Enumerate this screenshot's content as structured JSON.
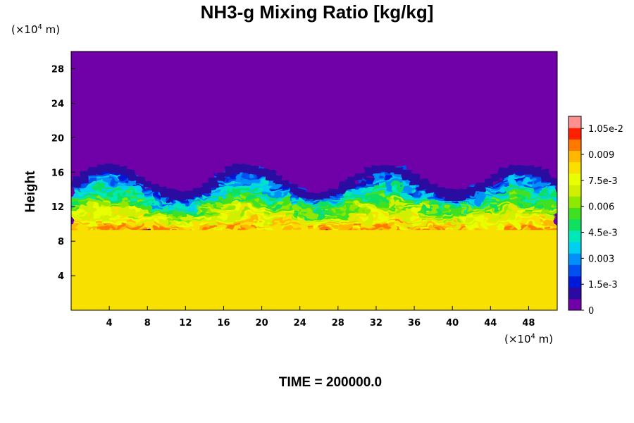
{
  "chart_data": {
    "type": "heatmap",
    "title": "NH3-g Mixing Ratio [kg/kg]",
    "ylabel": "Height",
    "x_unit": "(×10⁴ m)",
    "y_unit": "(×10⁴ m)",
    "footer": "TIME = 200000.0",
    "xlim": [
      0,
      51
    ],
    "ylim": [
      0,
      30
    ],
    "x_ticks": [
      4,
      8,
      12,
      16,
      20,
      24,
      28,
      32,
      36,
      40,
      44,
      48
    ],
    "y_ticks": [
      4,
      8,
      12,
      16,
      20,
      24,
      28
    ],
    "colorbar": {
      "range": [
        0,
        0.0112
      ],
      "tick_values": [
        0,
        0.0015,
        0.003,
        0.0045,
        0.006,
        0.0075,
        0.009,
        0.0105
      ],
      "tick_labels": [
        "0",
        "1.5e-3",
        "0.003",
        "4.5e-3",
        "0.006",
        "7.5e-3",
        "0.009",
        "1.05e-2"
      ],
      "colors": [
        "#7000a8",
        "#2a0aa0",
        "#0018d8",
        "#0050f0",
        "#0090f8",
        "#00d0f0",
        "#00e8b8",
        "#10e060",
        "#40e020",
        "#90e800",
        "#d0f000",
        "#e8ff00",
        "#f8e000",
        "#ffb800",
        "#ff7800",
        "#ff2000",
        "#ff9090"
      ]
    },
    "fields": {
      "upper_value": 0,
      "lower_value": 0.0082,
      "lower_layer_top": 9.3,
      "mixed_layer_value_range": [
        0.0015,
        0.0092
      ],
      "mixed_layer_top_approx": 16.5
    }
  }
}
